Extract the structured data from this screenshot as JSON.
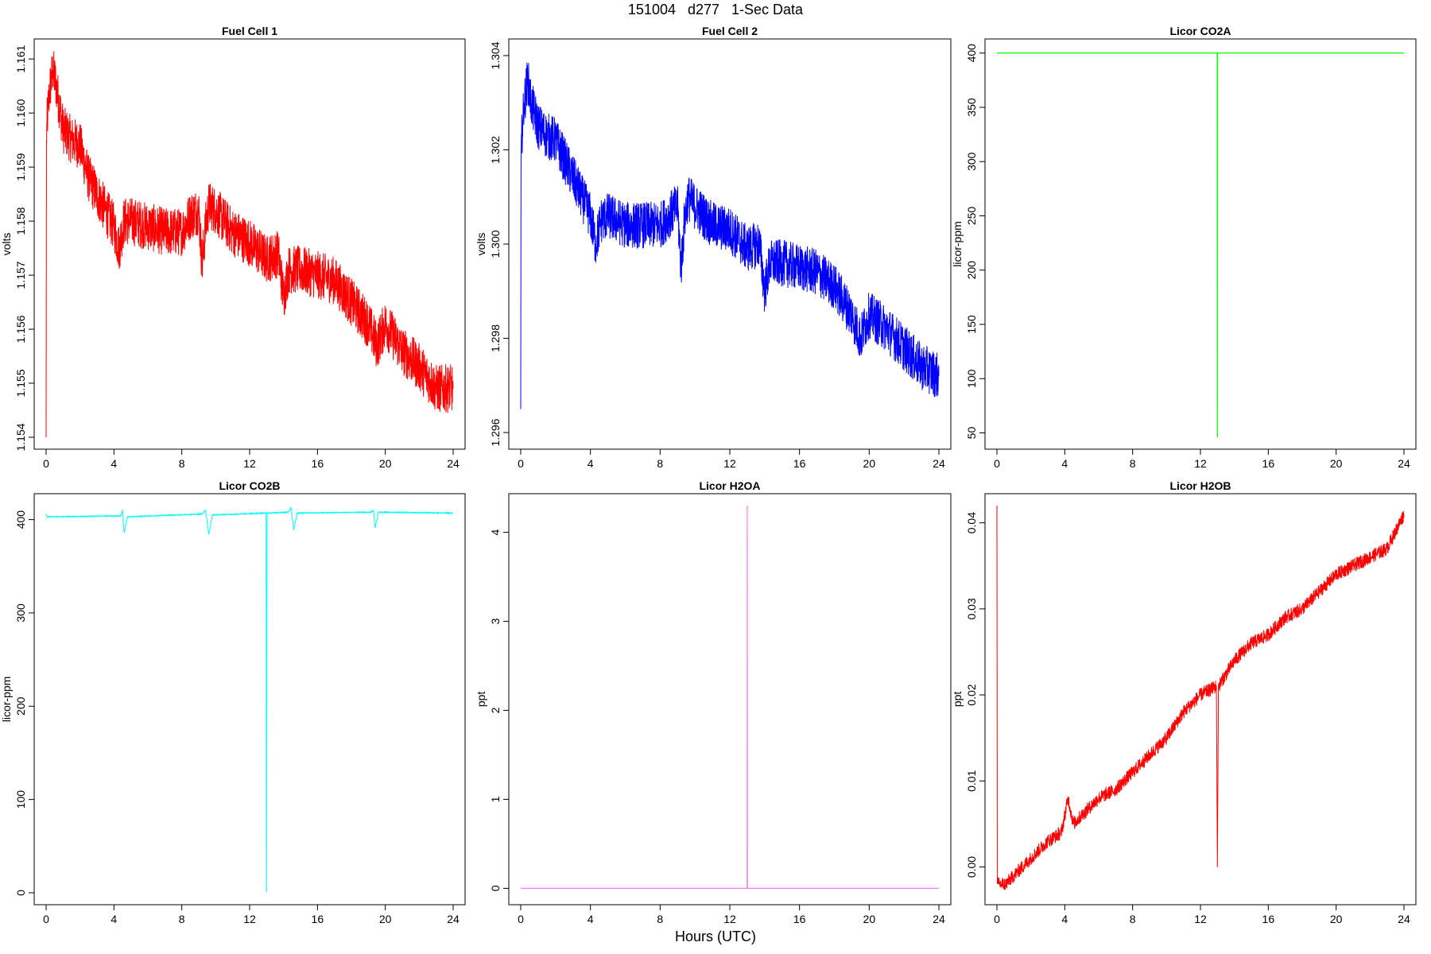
{
  "page": {
    "title": "151004   d277   1-Sec Data",
    "xlabel": "Hours (UTC)"
  },
  "chart_data": [
    {
      "type": "line",
      "title": "Fuel Cell 1",
      "xlabel": "",
      "ylabel": "volts",
      "xlim": [
        0,
        24
      ],
      "ylim": [
        1.154,
        1.16115
      ],
      "xticks": [
        "0",
        "4",
        "8",
        "12",
        "16",
        "20",
        "24"
      ],
      "yticks": [
        "1.154",
        "1.155",
        "1.156",
        "1.157",
        "1.158",
        "1.159",
        "1.160",
        "1.161"
      ],
      "series_color": "#ff0000",
      "noise": 0.00045,
      "series": [
        {
          "x": [
            0,
            0.02,
            0.05,
            0.1,
            0.2,
            0.4,
            0.6,
            1.0,
            1.5,
            2.0,
            2.5,
            3.0,
            3.5,
            4.0,
            4.3,
            4.6,
            5.0,
            6.0,
            7.0,
            8.0,
            8.5,
            9.0,
            9.2,
            9.4,
            9.6,
            10.0,
            11.0,
            12.0,
            13.0,
            13.7,
            14.0,
            14.3,
            15.0,
            16.0,
            17.0,
            18.0,
            19.0,
            19.5,
            20.0,
            21.0,
            22.0,
            23.0,
            24.0
          ],
          "y": [
            1.154,
            1.1595,
            1.1598,
            1.16,
            1.1604,
            1.1608,
            1.1605,
            1.1597,
            1.1595,
            1.1594,
            1.1588,
            1.1585,
            1.1582,
            1.1579,
            1.1575,
            1.158,
            1.158,
            1.1579,
            1.1578,
            1.1578,
            1.1581,
            1.1582,
            1.1572,
            1.1579,
            1.1583,
            1.1582,
            1.1578,
            1.1576,
            1.1573,
            1.1574,
            1.1566,
            1.1571,
            1.1571,
            1.157,
            1.1569,
            1.1565,
            1.1561,
            1.1557,
            1.1561,
            1.1556,
            1.1553,
            1.1549,
            1.1549
          ]
        }
      ]
    },
    {
      "type": "line",
      "title": "Fuel Cell 2",
      "xlabel": "",
      "ylabel": "volts",
      "xlim": [
        0,
        24
      ],
      "ylim": [
        1.2959,
        1.3041
      ],
      "xticks": [
        "0",
        "4",
        "8",
        "12",
        "16",
        "20",
        "24"
      ],
      "yticks": [
        "1.296",
        "1.298",
        "1.300",
        "1.302",
        "1.304"
      ],
      "series_color": "#0000ff",
      "noise": 0.0005,
      "series": [
        {
          "x": [
            0,
            0.02,
            0.05,
            0.1,
            0.2,
            0.4,
            0.6,
            1.0,
            1.5,
            2.0,
            2.5,
            3.0,
            3.5,
            4.0,
            4.3,
            4.6,
            5.0,
            6.0,
            7.0,
            8.0,
            8.5,
            9.0,
            9.2,
            9.4,
            9.6,
            10.0,
            11.0,
            12.0,
            13.0,
            13.7,
            14.0,
            14.3,
            15.0,
            16.0,
            17.0,
            18.0,
            19.0,
            19.5,
            20.0,
            21.0,
            22.0,
            23.0,
            24.0
          ],
          "y": [
            1.2965,
            1.3018,
            1.3022,
            1.3025,
            1.303,
            1.3035,
            1.303,
            1.3025,
            1.3023,
            1.3022,
            1.3018,
            1.3014,
            1.301,
            1.3006,
            1.3,
            1.3005,
            1.3006,
            1.3004,
            1.3004,
            1.3004,
            1.3006,
            1.3008,
            1.2995,
            1.3005,
            1.301,
            1.3008,
            1.3004,
            1.3003,
            1.2999,
            1.3,
            1.299,
            1.2996,
            1.2996,
            1.2995,
            1.2994,
            1.2991,
            1.2985,
            1.298,
            1.2985,
            1.2982,
            1.2978,
            1.2974,
            1.2972
          ]
        }
      ]
    },
    {
      "type": "line",
      "title": "Licor CO2A",
      "xlabel": "",
      "ylabel": "licor-ppm",
      "xlim": [
        0,
        24
      ],
      "ylim": [
        46,
        402
      ],
      "xticks": [
        "0",
        "4",
        "8",
        "12",
        "16",
        "20",
        "24"
      ],
      "yticks": [
        "50",
        "100",
        "150",
        "200",
        "250",
        "300",
        "350",
        "400"
      ],
      "series_color": "#00ff00",
      "noise": 0,
      "series": [
        {
          "x": [
            0,
            12.99,
            13.0,
            13.01,
            24
          ],
          "y": [
            400,
            400,
            46,
            400,
            400
          ]
        }
      ]
    },
    {
      "type": "line",
      "title": "Licor CO2B",
      "xlabel": "",
      "ylabel": "licor-ppm",
      "xlim": [
        0,
        24
      ],
      "ylim": [
        0,
        415
      ],
      "xticks": [
        "0",
        "4",
        "8",
        "12",
        "16",
        "20",
        "24"
      ],
      "yticks": [
        "0",
        "100",
        "200",
        "300",
        "400"
      ],
      "series_color": "#00ffff",
      "noise": 0.4,
      "series": [
        {
          "x": [
            0,
            0.05,
            0.1,
            4.4,
            4.5,
            4.6,
            4.8,
            9.2,
            9.4,
            9.6,
            9.8,
            12.94,
            12.97,
            13.0,
            13.03,
            13.06,
            14.3,
            14.45,
            14.6,
            14.8,
            19.2,
            19.3,
            19.4,
            19.6,
            24
          ],
          "y": [
            406,
            403,
            403,
            404,
            410,
            386,
            403,
            406,
            410,
            384,
            405,
            407,
            407,
            1,
            407,
            407,
            408,
            413,
            389,
            407,
            408,
            410,
            391,
            408,
            407
          ]
        }
      ]
    },
    {
      "type": "line",
      "title": "Licor H2OA",
      "xlabel": "",
      "ylabel": "ppt",
      "xlim": [
        0,
        24
      ],
      "ylim": [
        -0.05,
        4.3
      ],
      "xticks": [
        "0",
        "4",
        "8",
        "12",
        "16",
        "20",
        "24"
      ],
      "yticks": [
        "0",
        "1",
        "2",
        "3",
        "4"
      ],
      "series_color": "#ee82ee",
      "noise": 0,
      "series": [
        {
          "x": [
            0,
            12.99,
            13.0,
            13.01,
            24
          ],
          "y": [
            0,
            0,
            4.3,
            0,
            0
          ]
        }
      ]
    },
    {
      "type": "line",
      "title": "Licor H2OB",
      "xlabel": "",
      "ylabel": "ppt",
      "xlim": [
        0,
        24
      ],
      "ylim": [
        -0.003,
        0.042
      ],
      "xticks": [
        "0",
        "4",
        "8",
        "12",
        "16",
        "20",
        "24"
      ],
      "yticks": [
        "0.00",
        "0.01",
        "0.02",
        "0.03",
        "0.04"
      ],
      "series_color": "#ff0000",
      "noise": 0.0008,
      "series": [
        {
          "x": [
            0,
            0.02,
            0.05,
            0.1,
            0.5,
            1.0,
            2.0,
            3.0,
            3.8,
            4.2,
            4.5,
            5.0,
            6.0,
            7.0,
            8.0,
            9.0,
            10.0,
            11.0,
            12.0,
            12.94,
            13.0,
            13.06,
            14.0,
            15.0,
            16.0,
            17.0,
            18.0,
            19.0,
            20.0,
            21.0,
            22.0,
            23.0,
            23.5,
            24.0
          ],
          "y": [
            0.042,
            -0.001,
            -0.002,
            -0.002,
            -0.002,
            -0.001,
            0.001,
            0.003,
            0.004,
            0.008,
            0.005,
            0.006,
            0.008,
            0.009,
            0.011,
            0.013,
            0.015,
            0.018,
            0.02,
            0.021,
            0.0,
            0.021,
            0.024,
            0.026,
            0.027,
            0.029,
            0.03,
            0.032,
            0.034,
            0.035,
            0.036,
            0.037,
            0.039,
            0.041
          ]
        }
      ]
    }
  ]
}
